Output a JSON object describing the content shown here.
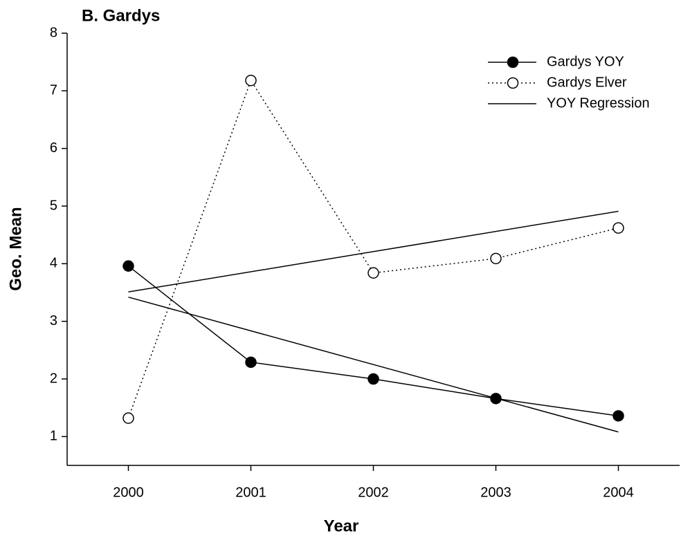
{
  "chart_data": {
    "type": "line",
    "title": "B. Gardys",
    "x_label": "Year",
    "y_label": "Geo. Mean",
    "x": [
      2000,
      2001,
      2002,
      2003,
      2004
    ],
    "series": [
      {
        "name": "Gardys YOY",
        "color": "#000000",
        "marker": "filled",
        "line_style": "solid",
        "values": [
          3.96,
          2.29,
          2.0,
          1.66,
          1.36
        ]
      },
      {
        "name": "Gardys Elver",
        "color": "#000000",
        "marker": "open",
        "line_style": "dotted",
        "values": [
          1.32,
          7.18,
          3.84,
          4.09,
          4.62
        ]
      }
    ],
    "regression_lines": [
      {
        "name": "YOY Regression",
        "color": "#000000",
        "x": [
          2000,
          2004
        ],
        "values": [
          3.42,
          1.08
        ]
      },
      {
        "color": "#000000",
        "x": [
          2000,
          2004
        ],
        "values": [
          3.51,
          4.91
        ]
      }
    ],
    "xlim": [
      1999.5,
      2004.5
    ],
    "xticks": [
      2000,
      2001,
      2002,
      2003,
      2004
    ],
    "ylim": [
      0.5,
      8
    ],
    "yticks": [
      1,
      2,
      3,
      4,
      5,
      6,
      7,
      8
    ],
    "legend": "upper right"
  }
}
